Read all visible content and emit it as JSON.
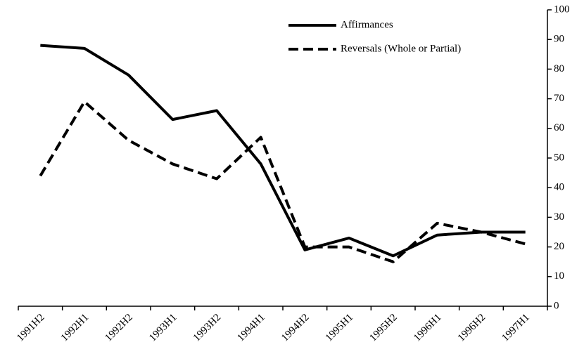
{
  "chart_data": {
    "type": "line",
    "categories": [
      "1991H2",
      "1992H1",
      "1992H2",
      "1993H1",
      "1993H2",
      "1994H1",
      "1994H2",
      "1995H1",
      "1995H2",
      "1996H1",
      "1996H2",
      "1997H1"
    ],
    "series": [
      {
        "name": "Affirmances",
        "color": "#000000",
        "dash": "solid",
        "values": [
          88,
          87,
          78,
          63,
          66,
          48,
          19,
          23,
          17,
          24,
          25,
          25
        ]
      },
      {
        "name": "Reversals (Whole or Partial)",
        "color": "#000000",
        "dash": "dashed",
        "values": [
          44,
          69,
          56,
          48,
          43,
          57,
          20,
          20,
          15,
          28,
          25,
          21
        ]
      }
    ],
    "ylim": [
      0,
      100
    ],
    "yticks": [
      0,
      10,
      20,
      30,
      40,
      50,
      60,
      70,
      80,
      90,
      100
    ],
    "y_axis_side": "right",
    "legend": "upper right"
  }
}
